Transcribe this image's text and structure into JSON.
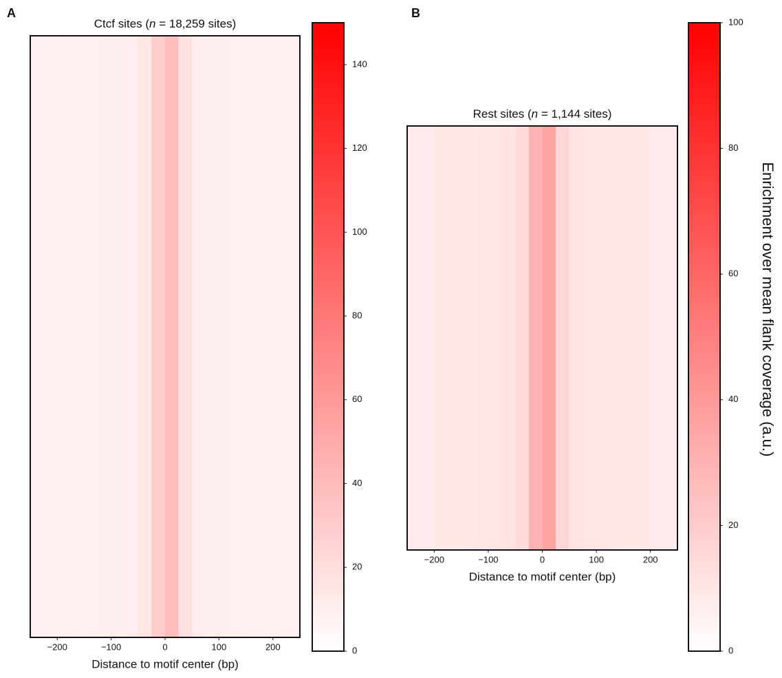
{
  "chart_data": [
    {
      "type": "heatmap",
      "panel": "A",
      "title": [
        "Ctcf sites (",
        "n",
        " = 18,259 sites)"
      ],
      "xlabel": "Distance to motif center (bp)",
      "x": [
        -237.5,
        -212.5,
        -187.5,
        -162.5,
        -137.5,
        -112.5,
        -87.5,
        -62.5,
        -37.5,
        -12.5,
        12.5,
        37.5,
        62.5,
        87.5,
        112.5,
        137.5,
        162.5,
        187.5,
        212.5,
        237.5
      ],
      "values": [
        8,
        8,
        9,
        9,
        9,
        10,
        10,
        11,
        14,
        30,
        38,
        18,
        11,
        10,
        10,
        9,
        9,
        9,
        8,
        8
      ],
      "xlim": [
        -250,
        250
      ],
      "xticks": [
        {
          "value": -200,
          "label": "−200"
        },
        {
          "value": -100,
          "label": "−100"
        },
        0,
        100,
        200
      ],
      "clim": [
        0,
        150
      ],
      "cticks": [
        0,
        20,
        40,
        60,
        80,
        100,
        120,
        140
      ],
      "color": "#ff0000"
    },
    {
      "type": "heatmap",
      "panel": "B",
      "title": [
        "Rest sites (",
        "n",
        " = 1,144 sites)"
      ],
      "xlabel": "Distance to motif center (bp)",
      "x": [
        -237.5,
        -212.5,
        -187.5,
        -162.5,
        -137.5,
        -112.5,
        -87.5,
        -62.5,
        -37.5,
        -12.5,
        12.5,
        37.5,
        62.5,
        87.5,
        112.5,
        137.5,
        162.5,
        187.5,
        212.5,
        237.5
      ],
      "values": [
        8,
        8,
        9,
        9,
        9,
        10,
        10,
        11,
        14,
        30,
        36,
        16,
        11,
        10,
        10,
        9,
        9,
        9,
        8,
        8
      ],
      "xlim": [
        -250,
        250
      ],
      "xticks": [
        {
          "value": -200,
          "label": "−200"
        },
        {
          "value": -100,
          "label": "−100"
        },
        0,
        100,
        200
      ],
      "clim": [
        0,
        100
      ],
      "cticks": [
        0,
        20,
        40,
        60,
        80,
        100
      ],
      "color": "#ff0000",
      "colorbar_label": "Enrichment over mean flank coverage (a.u.)"
    }
  ]
}
